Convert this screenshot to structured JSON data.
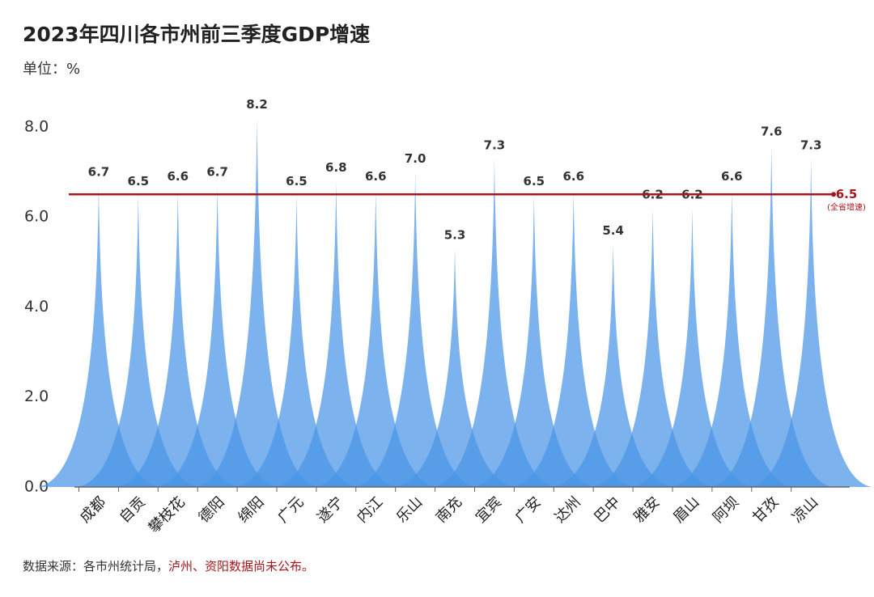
{
  "chart_data": {
    "type": "spike",
    "title": "2023年四川各市州前三季度GDP增速",
    "subtitle": "单位：%",
    "categories": [
      "成都",
      "自贡",
      "攀枝花",
      "德阳",
      "绵阳",
      "广元",
      "遂宁",
      "内江",
      "乐山",
      "南充",
      "宜宾",
      "广安",
      "达州",
      "巴中",
      "雅安",
      "眉山",
      "阿坝",
      "甘孜",
      "凉山"
    ],
    "values": [
      6.7,
      6.5,
      6.6,
      6.7,
      8.2,
      6.5,
      6.8,
      6.6,
      7.0,
      5.3,
      7.3,
      6.5,
      6.6,
      5.4,
      6.2,
      6.2,
      6.6,
      7.6,
      7.3
    ],
    "value_labels": [
      "6.7",
      "6.5",
      "6.6",
      "6.7",
      "8.2",
      "6.5",
      "6.8",
      "6.6",
      "7.0",
      "5.3",
      "7.3",
      "6.5",
      "6.6",
      "5.4",
      "6.2",
      "6.2",
      "6.6",
      "7.6",
      "7.3"
    ],
    "color": "#4a94e6",
    "ylim": [
      0,
      8.5
    ],
    "yticks": [
      {
        "value": 0,
        "label": "0.0"
      },
      {
        "value": 2,
        "label": "2.0"
      },
      {
        "value": 4,
        "label": "4.0"
      },
      {
        "value": 6,
        "label": "6.0"
      },
      {
        "value": 8,
        "label": "8.0"
      }
    ],
    "reference": {
      "value": 6.5,
      "label": "(全省增速)",
      "color": "#a8161c"
    },
    "source": "数据来源：各市州统计局，",
    "note": "泸州、资阳数据尚未公布。"
  }
}
